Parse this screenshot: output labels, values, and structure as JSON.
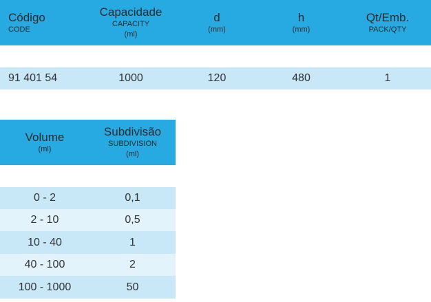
{
  "table1": {
    "headers": [
      {
        "main": "Código",
        "sub": "CODE",
        "sub2": ""
      },
      {
        "main": "Capacidade",
        "sub": "CAPACITY",
        "sub2": "(ml)"
      },
      {
        "main": "d",
        "sub": "(mm)",
        "sub2": ""
      },
      {
        "main": "h",
        "sub": "(mm)",
        "sub2": ""
      },
      {
        "main": "Qt/Emb.",
        "sub": "PACK/QTY",
        "sub2": ""
      }
    ],
    "rows": [
      [
        "91 401 54",
        "1000",
        "120",
        "480",
        "1"
      ]
    ]
  },
  "table2": {
    "headers": [
      {
        "main": "Volume",
        "sub": "(ml)",
        "sub2": ""
      },
      {
        "main": "Subdivisão",
        "sub": "SUBDIVISION",
        "sub2": "(ml)"
      }
    ],
    "rows": [
      [
        "0 - 2",
        "0,1"
      ],
      [
        "2 - 10",
        "0,5"
      ],
      [
        "10 - 40",
        "1"
      ],
      [
        "40 - 100",
        "2"
      ],
      [
        "100 - 1000",
        "50"
      ]
    ]
  }
}
